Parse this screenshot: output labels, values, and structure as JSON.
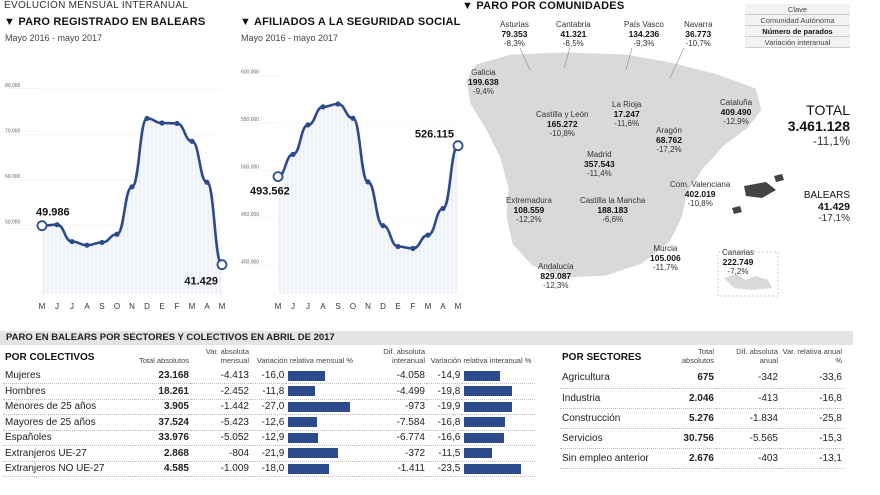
{
  "top_title": "EVOLUCIÓN MENSUAL INTERANUAL",
  "chart_data": [
    {
      "type": "line",
      "title": "PARO REGISTRADO EN BALEARS",
      "subtitle": "Mayo 2016 - mayo 2017",
      "categories": [
        "M",
        "J",
        "J",
        "A",
        "S",
        "O",
        "N",
        "D",
        "E",
        "F",
        "M",
        "A",
        "M"
      ],
      "values": [
        49986,
        50200,
        46500,
        45700,
        46300,
        48100,
        58500,
        73500,
        72500,
        72400,
        68500,
        59500,
        41429
      ],
      "ylim": [
        35000,
        85000
      ],
      "yticks": [
        "50.000",
        "60.000",
        "70.000",
        "80.000"
      ],
      "labels": {
        "first": "49.986",
        "last": "41.429"
      }
    },
    {
      "type": "line",
      "title": "AFILIADOS A LA SEGURIDAD SOCIAL",
      "subtitle": "Mayo 2016 - mayo 2017",
      "categories": [
        "M",
        "J",
        "J",
        "A",
        "S",
        "O",
        "N",
        "D",
        "E",
        "F",
        "M",
        "A",
        "M"
      ],
      "values": [
        493562,
        517000,
        548000,
        567000,
        570000,
        555000,
        488000,
        442000,
        420000,
        418000,
        432000,
        460000,
        526115
      ],
      "ylim": [
        370000,
        610000
      ],
      "yticks": [
        "400.000",
        "450.000",
        "500.000",
        "550.000",
        "600.000"
      ],
      "labels": {
        "first": "493.562",
        "last": "526.115"
      }
    }
  ],
  "map": {
    "title": "PARO POR COMUNIDADES",
    "legend": [
      "Clave",
      "Comunidad Autónoma",
      "Número de parados",
      "Variación interanual"
    ],
    "total_label": "TOTAL",
    "total_value": "3.461.128",
    "total_var": "-11,1%",
    "baleares_label": "BALEARS",
    "baleares_value": "41.429",
    "baleares_var": "-17,1%",
    "regions": [
      {
        "name": "Asturias",
        "value": "79.353",
        "var": "-8,3%"
      },
      {
        "name": "Cantabria",
        "value": "41.321",
        "var": "-8,5%"
      },
      {
        "name": "País Vasco",
        "value": "134.236",
        "var": "-9,3%"
      },
      {
        "name": "Navarra",
        "value": "36.773",
        "var": "-10,7%"
      },
      {
        "name": "Galicia",
        "value": "199.638",
        "var": "-9,4%"
      },
      {
        "name": "Castilla y León",
        "value": "165.272",
        "var": "-10,8%"
      },
      {
        "name": "La Rioja",
        "value": "17.247",
        "var": "-11,6%"
      },
      {
        "name": "Cataluña",
        "value": "409.490",
        "var": "-12,9%"
      },
      {
        "name": "Aragón",
        "value": "68.762",
        "var": "-17,2%"
      },
      {
        "name": "Madrid",
        "value": "357.543",
        "var": "-11,4%"
      },
      {
        "name": "Extremadura",
        "value": "108.559",
        "var": "-12,2%"
      },
      {
        "name": "Castilla la Mancha",
        "value": "188.183",
        "var": "-6,6%"
      },
      {
        "name": "Com. Valenciana",
        "value": "402.019",
        "var": "-10,8%"
      },
      {
        "name": "Murcia",
        "value": "105.006",
        "var": "-11,7%"
      },
      {
        "name": "Andalucía",
        "value": "829.087",
        "var": "-12,3%"
      },
      {
        "name": "Canarias",
        "value": "222.749",
        "var": "-7,2%"
      }
    ]
  },
  "section_title": "PARO EN BALEARS POR SECTORES Y COLECTIVOS EN ABRIL DE 2017",
  "colectivos": {
    "title": "POR COLECTIVOS",
    "headers": [
      "Total absolutos",
      "Var. absoluta mensual",
      "Variación relativa mensual %",
      "Dif. absoluta interanual",
      "Variación relativa interanual %"
    ],
    "rows": [
      {
        "name": "Mujeres",
        "total": "23.168",
        "var_abs": "-4.413",
        "var_rel": "-16,0",
        "rel_mensual": 16.0,
        "dif_abs": "-4.058",
        "dif_rel": "-14,9",
        "rel_interanual": 14.9
      },
      {
        "name": "Hombres",
        "total": "18.261",
        "var_abs": "-2.452",
        "var_rel": "-11,8",
        "rel_mensual": 11.8,
        "dif_abs": "-4.499",
        "dif_rel": "-19,8",
        "rel_interanual": 19.8
      },
      {
        "name": "Menores de 25 años",
        "total": "3.905",
        "var_abs": "-1.442",
        "var_rel": "-27,0",
        "rel_mensual": 27.0,
        "dif_abs": "-973",
        "dif_rel": "-19,9",
        "rel_interanual": 19.9
      },
      {
        "name": "Mayores de 25 años",
        "total": "37.524",
        "var_abs": "-5.423",
        "var_rel": "-12,6",
        "rel_mensual": 12.6,
        "dif_abs": "-7.584",
        "dif_rel": "-16,8",
        "rel_interanual": 16.8
      },
      {
        "name": "Españoles",
        "total": "33.976",
        "var_abs": "-5.052",
        "var_rel": "-12,9",
        "rel_mensual": 12.9,
        "dif_abs": "-6.774",
        "dif_rel": "-16,6",
        "rel_interanual": 16.6
      },
      {
        "name": "Extranjeros UE-27",
        "total": "2.868",
        "var_abs": "-804",
        "var_rel": "-21,9",
        "rel_mensual": 21.9,
        "dif_abs": "-372",
        "dif_rel": "-11,5",
        "rel_interanual": 11.5
      },
      {
        "name": "Extranjeros NO UE-27",
        "total": "4.585",
        "var_abs": "-1.009",
        "var_rel": "-18,0",
        "rel_mensual": 18.0,
        "dif_abs": "-1.411",
        "dif_rel": "-23,5",
        "rel_interanual": 23.5
      }
    ]
  },
  "sectores": {
    "title": "POR SECTORES",
    "headers": [
      "Total absolutos",
      "Dif. absoluta anual",
      "Var. relativa anual %"
    ],
    "rows": [
      {
        "name": "Agricultura",
        "total": "675",
        "dif": "-342",
        "var": "-33,6"
      },
      {
        "name": "Industria",
        "total": "2.046",
        "dif": "-413",
        "var": "-16,8"
      },
      {
        "name": "Construcción",
        "total": "5.276",
        "dif": "-1.834",
        "var": "-25,8"
      },
      {
        "name": "Servicios",
        "total": "30.756",
        "dif": "-5.565",
        "var": "-15,3"
      },
      {
        "name": "Sin empleo anterior",
        "total": "2.676",
        "dif": "-403",
        "var": "-13,1"
      }
    ]
  }
}
